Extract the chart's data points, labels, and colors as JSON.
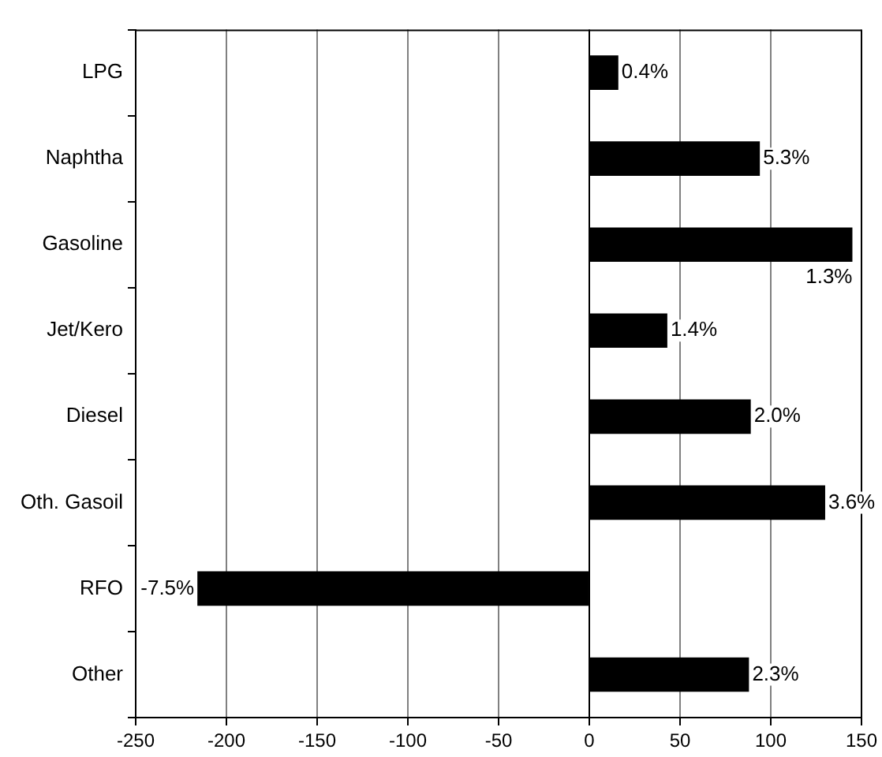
{
  "chart_data": {
    "type": "bar",
    "orientation": "horizontal",
    "categories": [
      "LPG",
      "Naphtha",
      "Gasoline",
      "Jet/Kero",
      "Diesel",
      "Oth. Gasoil",
      "RFO",
      "Other"
    ],
    "values": [
      16,
      94,
      145,
      43,
      89,
      130,
      -216,
      88
    ],
    "color": "#000000",
    "annotations": [
      {
        "text": "0.4%",
        "x": 16,
        "y": "LPG"
      },
      {
        "text": "5.3%",
        "x": 94,
        "y": "Naphtha"
      },
      {
        "text": "1.3%",
        "x": 145,
        "y": "Gasoline"
      },
      {
        "text": "1.4%",
        "x": 43,
        "y": "Jet/Kero"
      },
      {
        "text": "2.0%",
        "x": 89,
        "y": "Diesel"
      },
      {
        "text": "3.6%",
        "x": 130,
        "y": "Oth. Gasoil"
      },
      {
        "text": "-7.5%",
        "x": -216,
        "y": "RFO"
      },
      {
        "text": "2.3%",
        "x": 88,
        "y": "Other"
      }
    ],
    "xlim": [
      -250,
      150
    ],
    "xticks": [
      -250,
      -200,
      -150,
      -100,
      -50,
      0,
      50,
      100,
      150
    ],
    "grid": "x"
  }
}
